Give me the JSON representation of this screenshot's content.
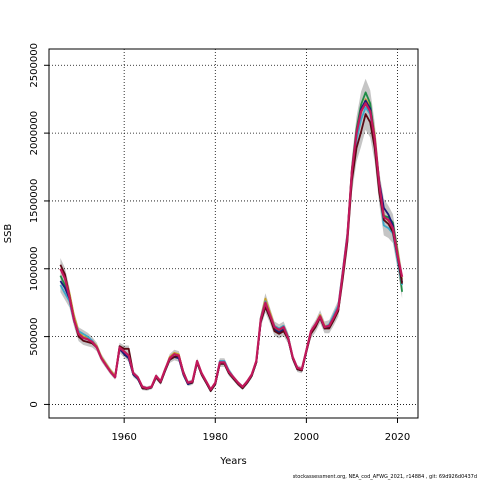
{
  "chart_data": {
    "type": "line",
    "title": "",
    "xlabel": "Years",
    "ylabel": "SSB",
    "xlim": [
      1943.5,
      2024.5
    ],
    "ylim": [
      -100000,
      2620000
    ],
    "x_ticks": [
      1960,
      1980,
      2000,
      2020
    ],
    "y_ticks": [
      0,
      500000,
      1000000,
      1500000,
      2000000,
      2500000
    ],
    "y_tick_labels": [
      "0",
      "500000",
      "1000000",
      "1500000",
      "2000000",
      "2500000"
    ],
    "grid": true,
    "grid_style": "dotted",
    "x": [
      1946,
      1947,
      1948,
      1949,
      1950,
      1951,
      1952,
      1953,
      1954,
      1955,
      1956,
      1957,
      1958,
      1959,
      1960,
      1961,
      1962,
      1963,
      1964,
      1965,
      1966,
      1967,
      1968,
      1969,
      1970,
      1971,
      1972,
      1973,
      1974,
      1975,
      1976,
      1977,
      1978,
      1979,
      1980,
      1981,
      1982,
      1983,
      1984,
      1985,
      1986,
      1987,
      1988,
      1989,
      1990,
      1991,
      1992,
      1993,
      1994,
      1995,
      1996,
      1997,
      1998,
      1999,
      2000,
      2001,
      2002,
      2003,
      2004,
      2005,
      2006,
      2007,
      2008,
      2009,
      2010,
      2011,
      2012,
      2013,
      2014,
      2015,
      2016,
      2017,
      2018,
      2019,
      2020,
      2021
    ],
    "series": [
      {
        "color": "#C9A227",
        "values": [
          1000000,
          950000,
          820000,
          650000,
          540000,
          500000,
          490000,
          470000,
          430000,
          350000,
          300000,
          250000,
          210000,
          420000,
          380000,
          350000,
          230000,
          200000,
          130000,
          120000,
          130000,
          210000,
          170000,
          260000,
          350000,
          380000,
          370000,
          230000,
          160000,
          170000,
          320000,
          230000,
          170000,
          110000,
          160000,
          310000,
          310000,
          240000,
          200000,
          160000,
          130000,
          170000,
          220000,
          320000,
          640000,
          780000,
          680000,
          580000,
          560000,
          580000,
          500000,
          350000,
          270000,
          260000,
          400000,
          540000,
          590000,
          660000,
          580000,
          580000,
          640000,
          710000,
          960000,
          1250000,
          1720000,
          1990000,
          2150000,
          2250000,
          2200000,
          1990000,
          1640000,
          1400000,
          1350000,
          1330000,
          1140000,
          920000
        ]
      },
      {
        "color": "#1E8C45",
        "values": [
          950000,
          880000,
          790000,
          620000,
          520000,
          490000,
          480000,
          460000,
          420000,
          340000,
          290000,
          240000,
          200000,
          410000,
          370000,
          340000,
          220000,
          190000,
          120000,
          115000,
          125000,
          200000,
          160000,
          250000,
          330000,
          360000,
          350000,
          220000,
          150000,
          160000,
          310000,
          220000,
          160000,
          100000,
          150000,
          300000,
          300000,
          230000,
          190000,
          150000,
          120000,
          160000,
          210000,
          310000,
          620000,
          740000,
          650000,
          560000,
          540000,
          560000,
          490000,
          340000,
          260000,
          250000,
          390000,
          530000,
          580000,
          650000,
          570000,
          570000,
          630000,
          700000,
          950000,
          1240000,
          1740000,
          2030000,
          2210000,
          2300000,
          2220000,
          1960000,
          1620000,
          1390000,
          1380000,
          1340000,
          1120000,
          830000
        ]
      },
      {
        "color": "#3BA9C9",
        "values": [
          880000,
          820000,
          760000,
          610000,
          540000,
          520000,
          500000,
          470000,
          420000,
          340000,
          290000,
          240000,
          200000,
          420000,
          380000,
          350000,
          230000,
          200000,
          130000,
          120000,
          130000,
          210000,
          170000,
          260000,
          340000,
          360000,
          350000,
          230000,
          160000,
          170000,
          320000,
          230000,
          170000,
          110000,
          160000,
          320000,
          320000,
          250000,
          200000,
          160000,
          130000,
          170000,
          220000,
          320000,
          640000,
          760000,
          660000,
          580000,
          560000,
          580000,
          500000,
          350000,
          270000,
          260000,
          400000,
          540000,
          590000,
          640000,
          570000,
          590000,
          660000,
          730000,
          990000,
          1260000,
          1700000,
          1950000,
          2100000,
          2190000,
          2140000,
          1930000,
          1580000,
          1320000,
          1300000,
          1260000,
          1060000,
          880000
        ]
      },
      {
        "color": "#1A1A7A",
        "values": [
          910000,
          860000,
          780000,
          620000,
          520000,
          490000,
          480000,
          460000,
          420000,
          340000,
          290000,
          240000,
          200000,
          410000,
          370000,
          340000,
          220000,
          190000,
          120000,
          115000,
          125000,
          200000,
          160000,
          250000,
          330000,
          350000,
          340000,
          220000,
          150000,
          160000,
          310000,
          220000,
          160000,
          100000,
          150000,
          300000,
          300000,
          230000,
          190000,
          150000,
          120000,
          160000,
          210000,
          310000,
          610000,
          720000,
          640000,
          550000,
          530000,
          550000,
          480000,
          340000,
          260000,
          250000,
          390000,
          530000,
          580000,
          640000,
          560000,
          570000,
          630000,
          700000,
          960000,
          1240000,
          1720000,
          2000000,
          2180000,
          2240000,
          2180000,
          1960000,
          1640000,
          1450000,
          1400000,
          1320000,
          1100000,
          900000
        ]
      },
      {
        "color": "#5A0A14",
        "values": [
          1030000,
          960000,
          800000,
          620000,
          500000,
          470000,
          460000,
          450000,
          420000,
          340000,
          290000,
          240000,
          200000,
          430000,
          410000,
          410000,
          230000,
          200000,
          120000,
          115000,
          125000,
          200000,
          160000,
          250000,
          330000,
          350000,
          360000,
          240000,
          160000,
          160000,
          310000,
          220000,
          160000,
          100000,
          150000,
          300000,
          300000,
          230000,
          190000,
          150000,
          120000,
          160000,
          210000,
          310000,
          610000,
          720000,
          640000,
          540000,
          520000,
          540000,
          480000,
          340000,
          260000,
          250000,
          390000,
          520000,
          570000,
          640000,
          560000,
          560000,
          620000,
          690000,
          930000,
          1200000,
          1650000,
          1890000,
          2010000,
          2140000,
          2080000,
          1890000,
          1560000,
          1360000,
          1330000,
          1270000,
          1090000,
          890000
        ]
      },
      {
        "color": "#C2185B",
        "values": [
          1000000,
          930000,
          790000,
          620000,
          520000,
          490000,
          480000,
          460000,
          420000,
          340000,
          290000,
          240000,
          200000,
          420000,
          390000,
          360000,
          230000,
          200000,
          130000,
          120000,
          130000,
          210000,
          170000,
          260000,
          340000,
          370000,
          360000,
          230000,
          160000,
          170000,
          320000,
          230000,
          170000,
          110000,
          160000,
          310000,
          310000,
          240000,
          200000,
          160000,
          130000,
          170000,
          220000,
          320000,
          630000,
          750000,
          660000,
          570000,
          550000,
          570000,
          490000,
          350000,
          270000,
          260000,
          400000,
          540000,
          590000,
          650000,
          570000,
          580000,
          640000,
          710000,
          970000,
          1240000,
          1720000,
          2000000,
          2160000,
          2220000,
          2160000,
          1960000,
          1620000,
          1380000,
          1360000,
          1300000,
          1100000,
          940000
        ]
      }
    ]
  },
  "footer_text": "stockassessment.org,  NEA_cod_AFWG_2021,  r14884 ,  git: 69d926d0437d"
}
